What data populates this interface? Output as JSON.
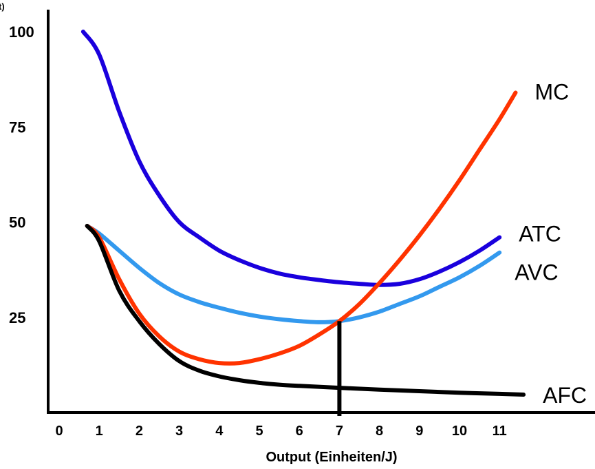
{
  "chart_data": {
    "type": "line",
    "xlabel": "Output (Einheiten/J)",
    "ylabel_fragment": "t)",
    "x_ticks": [
      "0",
      "1",
      "2",
      "3",
      "4",
      "5",
      "6",
      "7",
      "8",
      "9",
      "10",
      "11"
    ],
    "x_tick_values": [
      0,
      1,
      2,
      3,
      4,
      5,
      6,
      7,
      8,
      9,
      10,
      11
    ],
    "y_ticks": [
      "25",
      "50",
      "75",
      "100"
    ],
    "y_tick_values": [
      25,
      50,
      75,
      100
    ],
    "xlim": [
      0,
      12.2
    ],
    "ylim": [
      0,
      110
    ],
    "grid": false,
    "marker_line": {
      "x": 7,
      "y": 24
    },
    "series": [
      {
        "name": "MC",
        "color": "#ff3300",
        "points": [
          [
            0.7,
            49
          ],
          [
            1.0,
            46
          ],
          [
            1.5,
            35
          ],
          [
            2.0,
            26
          ],
          [
            2.5,
            20
          ],
          [
            3.0,
            16
          ],
          [
            3.5,
            14
          ],
          [
            4.0,
            13
          ],
          [
            4.5,
            13
          ],
          [
            5.0,
            14
          ],
          [
            5.5,
            15.5
          ],
          [
            6.0,
            17.5
          ],
          [
            6.5,
            20.5
          ],
          [
            7.0,
            24
          ],
          [
            7.5,
            28.5
          ],
          [
            8.0,
            34
          ],
          [
            8.5,
            40
          ],
          [
            9.0,
            46.5
          ],
          [
            9.5,
            53.5
          ],
          [
            10.0,
            61
          ],
          [
            10.5,
            69
          ],
          [
            11.0,
            77
          ],
          [
            11.4,
            84
          ]
        ]
      },
      {
        "name": "ATC",
        "color": "#1a00dd",
        "points": [
          [
            0.6,
            100
          ],
          [
            1.0,
            94
          ],
          [
            1.5,
            79
          ],
          [
            2.0,
            66
          ],
          [
            2.5,
            57
          ],
          [
            3.0,
            50
          ],
          [
            3.5,
            46
          ],
          [
            4.0,
            42.5
          ],
          [
            4.5,
            40
          ],
          [
            5.0,
            38
          ],
          [
            5.5,
            36.5
          ],
          [
            6.0,
            35.5
          ],
          [
            6.5,
            34.8
          ],
          [
            7.0,
            34.2
          ],
          [
            7.5,
            33.8
          ],
          [
            8.0,
            33.5
          ],
          [
            8.5,
            33.8
          ],
          [
            9.0,
            35
          ],
          [
            9.5,
            37
          ],
          [
            10.0,
            39.5
          ],
          [
            10.5,
            42.5
          ],
          [
            11.0,
            46
          ]
        ]
      },
      {
        "name": "AVC",
        "color": "#3399ee",
        "points": [
          [
            0.7,
            49
          ],
          [
            1.0,
            47
          ],
          [
            1.5,
            42.5
          ],
          [
            2.0,
            38
          ],
          [
            2.5,
            34
          ],
          [
            3.0,
            31
          ],
          [
            3.5,
            29
          ],
          [
            4.0,
            27.5
          ],
          [
            4.5,
            26.2
          ],
          [
            5.0,
            25.2
          ],
          [
            5.5,
            24.5
          ],
          [
            6.0,
            24
          ],
          [
            6.5,
            23.7
          ],
          [
            7.0,
            24
          ],
          [
            7.5,
            25
          ],
          [
            8.0,
            26.5
          ],
          [
            8.5,
            28.5
          ],
          [
            9.0,
            30.5
          ],
          [
            9.5,
            33
          ],
          [
            10.0,
            35.5
          ],
          [
            10.5,
            38.5
          ],
          [
            11.0,
            42
          ]
        ]
      },
      {
        "name": "AFC",
        "color": "#000000",
        "points": [
          [
            0.7,
            49
          ],
          [
            1.0,
            45
          ],
          [
            1.5,
            32
          ],
          [
            2.0,
            24
          ],
          [
            2.5,
            18
          ],
          [
            3.0,
            13.5
          ],
          [
            3.5,
            11
          ],
          [
            4.0,
            9.5
          ],
          [
            4.5,
            8.5
          ],
          [
            5.0,
            7.8
          ],
          [
            5.5,
            7.3
          ],
          [
            6.0,
            7
          ],
          [
            7.0,
            6.5
          ],
          [
            8.0,
            6
          ],
          [
            9.0,
            5.6
          ],
          [
            10.0,
            5.2
          ],
          [
            11.0,
            4.9
          ],
          [
            11.6,
            4.7
          ]
        ]
      }
    ]
  }
}
